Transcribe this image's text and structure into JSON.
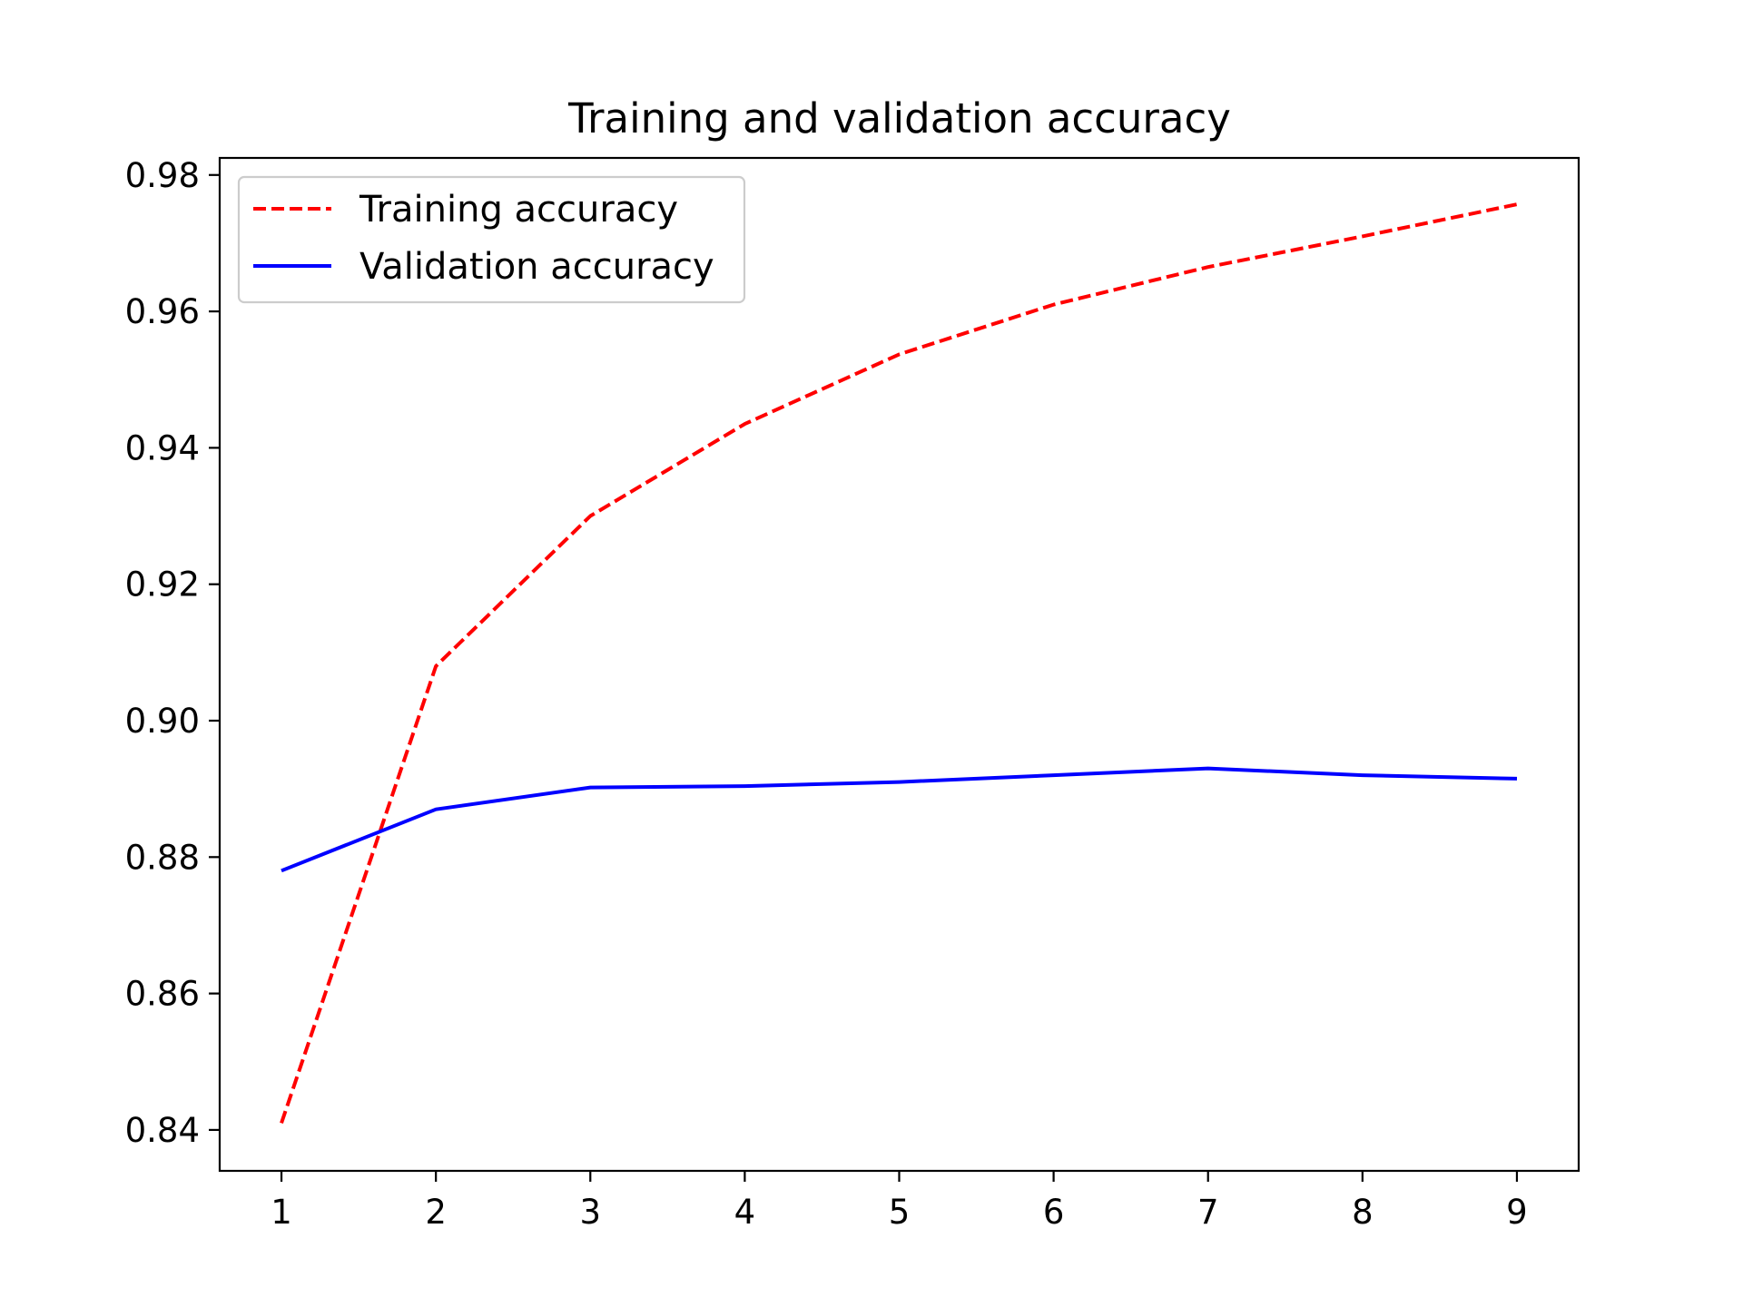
{
  "chart_data": {
    "type": "line",
    "title": "Training and validation accuracy",
    "xlabel": "",
    "ylabel": "",
    "x": [
      1,
      2,
      3,
      4,
      5,
      6,
      7,
      8,
      9
    ],
    "xticks": [
      "1",
      "2",
      "3",
      "4",
      "5",
      "6",
      "7",
      "8",
      "9"
    ],
    "yticks": [
      "0.84",
      "0.86",
      "0.88",
      "0.90",
      "0.92",
      "0.94",
      "0.96",
      "0.98"
    ],
    "xlim": [
      0.6,
      9.4
    ],
    "ylim": [
      0.834,
      0.9825
    ],
    "grid": false,
    "legend_position": "upper-left",
    "series": [
      {
        "name": "Training accuracy",
        "color": "#ff0000",
        "style": "dashed",
        "values": [
          0.841,
          0.908,
          0.93,
          0.9435,
          0.9537,
          0.961,
          0.9665,
          0.971,
          0.9757
        ]
      },
      {
        "name": "Validation accuracy",
        "color": "#0000ff",
        "style": "solid",
        "values": [
          0.878,
          0.887,
          0.8902,
          0.8904,
          0.891,
          0.892,
          0.893,
          0.892,
          0.8915
        ]
      }
    ]
  }
}
